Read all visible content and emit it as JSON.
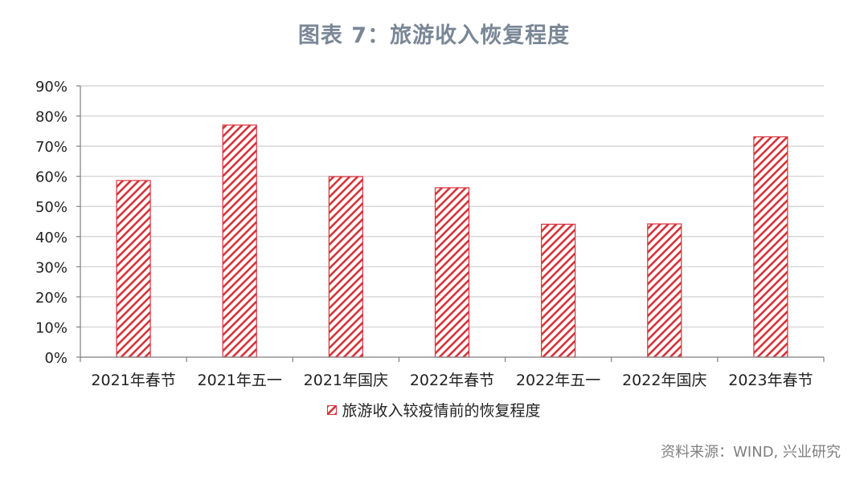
{
  "title": "图表 7：旅游收入恢复程度",
  "source": "资料来源：WIND, 兴业研究",
  "colors": {
    "bar": "#d6323a",
    "grid": "#cfcfcf",
    "axis": "#7f7f7f"
  },
  "chart_data": {
    "type": "bar",
    "categories": [
      "2021年春节",
      "2021年五一",
      "2021年国庆",
      "2022年春节",
      "2022年五一",
      "2022年国庆",
      "2023年春节"
    ],
    "series": [
      {
        "name": "旅游收入较疫情前的恢复程度",
        "values": [
          58.6,
          77.0,
          59.9,
          56.2,
          44.1,
          44.2,
          73.1
        ]
      }
    ],
    "ylim": [
      0,
      90
    ],
    "yticks": [
      "0%",
      "10%",
      "20%",
      "30%",
      "40%",
      "50%",
      "60%",
      "70%",
      "80%",
      "90%"
    ],
    "grid": true,
    "legend": "bottom-center",
    "pattern": "diagonal-hatch"
  }
}
